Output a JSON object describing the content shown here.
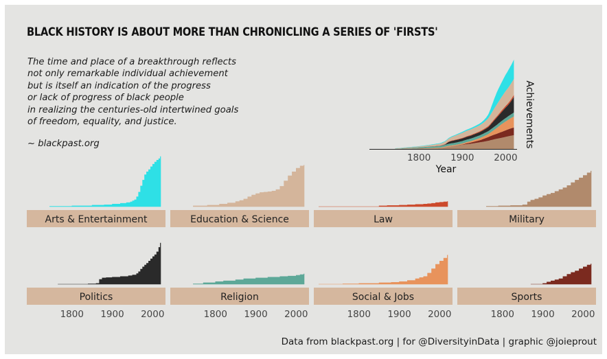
{
  "title": "BLACK HISTORY IS ABOUT MORE THAN CHRONICLING A SERIES OF 'FIRSTS'",
  "subtitle_lines": [
    "The time and place of a breakthrough reflects",
    "not only remarkable individual achievement",
    "but is itself an indication of the progress",
    "or lack of progress of black people",
    "in realizing the centuries-old intertwined goals",
    "of freedom, equality, and justice."
  ],
  "source_tag": "~ blackpast.org",
  "caption": "Data from blackpast.org | for @DiversityinData | graphic @joieprout",
  "chart_data": [
    {
      "type": "area",
      "chart": "stacked-overview",
      "xlabel": "Year",
      "ylabel": "Achievements",
      "xlim": [
        1700,
        2020
      ],
      "ylim": [
        0,
        480
      ],
      "x_ticks": [
        1800,
        1900,
        2000
      ],
      "stack_order": [
        "Military",
        "Sports",
        "Social & Jobs",
        "Religion",
        "Politics",
        "Law",
        "Education & Science",
        "Arts & Entertainment"
      ]
    },
    {
      "type": "area",
      "chart": "small-multiples",
      "xlim": [
        1700,
        2020
      ],
      "ylim": [
        0,
        140
      ],
      "x_ticks": [
        1800,
        1900,
        2000
      ],
      "series": [
        {
          "name": "Arts & Entertainment",
          "color": "#2ee0e6",
          "x": [
            1745,
            1800,
            1850,
            1880,
            1900,
            1920,
            1935,
            1945,
            1950,
            1955,
            1960,
            1965,
            1970,
            1975,
            1980,
            1985,
            1990,
            1995,
            2000,
            2005,
            2010,
            2015,
            2019
          ],
          "values": [
            1,
            2,
            4,
            5,
            7,
            9,
            11,
            13,
            16,
            19,
            27,
            40,
            57,
            73,
            88,
            96,
            102,
            110,
            117,
            123,
            128,
            132,
            138
          ]
        },
        {
          "name": "Education & Science",
          "color": "#d4b59b",
          "x": [
            1745,
            1780,
            1810,
            1830,
            1850,
            1860,
            1870,
            1880,
            1890,
            1900,
            1910,
            1920,
            1930,
            1940,
            1950,
            1960,
            1970,
            1980,
            1990,
            2000,
            2010,
            2019
          ],
          "values": [
            2,
            4,
            7,
            10,
            14,
            17,
            21,
            27,
            32,
            36,
            39,
            40,
            41,
            43,
            47,
            56,
            71,
            85,
            96,
            106,
            112,
            114
          ]
        },
        {
          "name": "Law",
          "color": "#cc4a2c",
          "x": [
            1700,
            1800,
            1850,
            1870,
            1900,
            1920,
            1940,
            1960,
            1970,
            1980,
            1990,
            2000,
            2010,
            2019
          ],
          "values": [
            0,
            0,
            2,
            3,
            4,
            5,
            6,
            7,
            8,
            9,
            11,
            12,
            13,
            14
          ]
        },
        {
          "name": "Military",
          "color": "#b18a6c",
          "x": [
            1760,
            1790,
            1820,
            1850,
            1862,
            1870,
            1880,
            1890,
            1900,
            1910,
            1920,
            1930,
            1940,
            1950,
            1960,
            1970,
            1980,
            1990,
            2000,
            2010,
            2019
          ],
          "values": [
            1,
            2,
            3,
            5,
            13,
            18,
            21,
            25,
            30,
            34,
            37,
            42,
            47,
            52,
            58,
            66,
            73,
            79,
            86,
            93,
            98
          ]
        },
        {
          "name": "Politics",
          "color": "#2a2a2a",
          "x": [
            1765,
            1840,
            1860,
            1868,
            1875,
            1885,
            1900,
            1920,
            1940,
            1950,
            1960,
            1965,
            1970,
            1975,
            1980,
            1985,
            1990,
            1995,
            2000,
            2005,
            2010,
            2015,
            2019
          ],
          "values": [
            0,
            1,
            2,
            13,
            17,
            18,
            19,
            21,
            23,
            25,
            29,
            34,
            41,
            47,
            52,
            57,
            63,
            69,
            75,
            80,
            88,
            100,
            112
          ]
        },
        {
          "name": "Religion",
          "color": "#5da898",
          "x": [
            1745,
            1770,
            1800,
            1820,
            1850,
            1870,
            1900,
            1930,
            1960,
            1980,
            2000,
            2010,
            2019
          ],
          "values": [
            1,
            4,
            7,
            9,
            12,
            15,
            17,
            19,
            21,
            22,
            24,
            26,
            28
          ]
        },
        {
          "name": "Social & Jobs",
          "color": "#e8935c",
          "x": [
            1700,
            1760,
            1800,
            1850,
            1880,
            1900,
            1920,
            1940,
            1950,
            1960,
            1970,
            1980,
            1990,
            2000,
            2010,
            2019
          ],
          "values": [
            0,
            1,
            2,
            4,
            5,
            7,
            10,
            15,
            18,
            21,
            30,
            42,
            54,
            63,
            71,
            79
          ]
        },
        {
          "name": "Sports",
          "color": "#7b2a1f",
          "x": [
            1870,
            1900,
            1910,
            1920,
            1930,
            1940,
            1950,
            1960,
            1970,
            1980,
            1990,
            2000,
            2010,
            2019
          ],
          "values": [
            0,
            2,
            6,
            9,
            12,
            15,
            21,
            27,
            32,
            36,
            42,
            47,
            52,
            55
          ]
        }
      ]
    }
  ],
  "colors": {
    "panel_background": "#e4e4e2",
    "strip_fill": "#d5b79e",
    "axis_line": "#222222"
  }
}
